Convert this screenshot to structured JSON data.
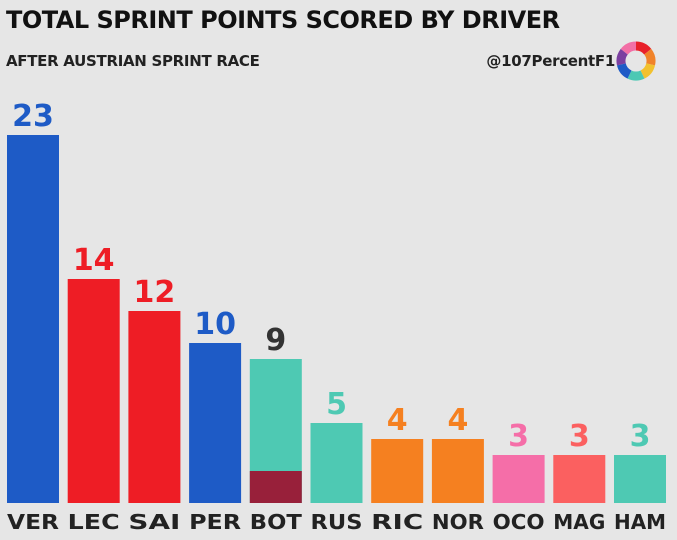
{
  "header": {
    "title": "TOTAL SPRINT POINTS SCORED BY DRIVER",
    "subtitle": "AFTER AUSTRIAN SPRINT RACE",
    "brand": "@107PercentF1",
    "logo_colors": [
      "#e8202a",
      "#f0832a",
      "#f2c12e",
      "#4cc8b4",
      "#1e5bc6",
      "#7b3fa0",
      "#f26fa6"
    ]
  },
  "chart_data": {
    "type": "bar",
    "title": "TOTAL SPRINT POINTS SCORED BY DRIVER",
    "subtitle": "AFTER AUSTRIAN SPRINT RACE",
    "xlabel": "",
    "ylabel": "",
    "ylim": [
      0,
      23
    ],
    "grid": false,
    "categories": [
      "VER",
      "LEC",
      "SAI",
      "PER",
      "BOT",
      "RUS",
      "RIC",
      "NOR",
      "OCO",
      "MAG",
      "HAM"
    ],
    "values": [
      23,
      14,
      12,
      10,
      9,
      5,
      4,
      4,
      3,
      3,
      3
    ],
    "value_labels": [
      "23",
      "14",
      "12",
      "10",
      "9",
      "5",
      "4",
      "4",
      "3",
      "3",
      "3"
    ],
    "colors": [
      "#1e5bc6",
      "#ee1d25",
      "#ee1d25",
      "#1e5bc6",
      "#4ec9b3",
      "#4ec9b3",
      "#f58020",
      "#f58020",
      "#f56ea8",
      "#fb6060",
      "#4ec9b3"
    ],
    "label_colors": [
      "#1e5bc6",
      "#ee1d25",
      "#ee1d25",
      "#1e5bc6",
      "#333333",
      "#4ec9b3",
      "#f58020",
      "#f58020",
      "#f56ea8",
      "#fb6060",
      "#4ec9b3"
    ],
    "segments": [
      {
        "category": "BOT",
        "bottom_value": 2,
        "bottom_color": "#98203a"
      }
    ]
  }
}
